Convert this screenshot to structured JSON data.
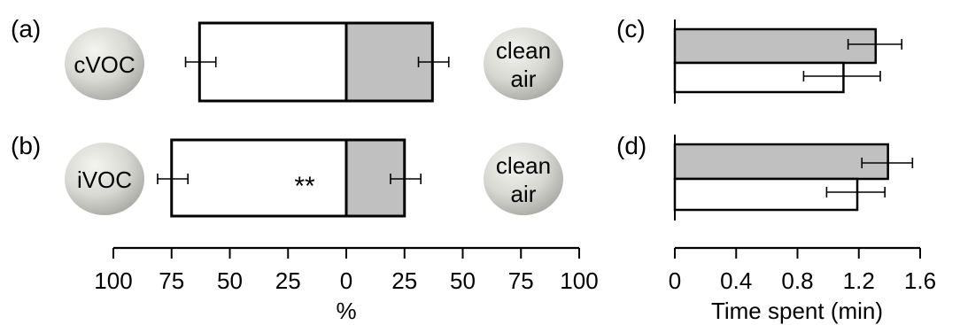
{
  "chart_data": [
    {
      "panel": "(a)",
      "type": "bar",
      "orientation": "horizontal-diverging",
      "left_label": "cVOC",
      "right_label": "clean air",
      "left": {
        "value": 63,
        "err_low": 56,
        "err_high": 69
      },
      "right": {
        "value": 37,
        "err_low": 31,
        "err_high": 44
      },
      "annotation": "",
      "xlim": [
        -100,
        100
      ],
      "xlabel": "%",
      "tick_labels": [
        "100",
        "75",
        "50",
        "25",
        "0",
        "25",
        "50",
        "75",
        "100"
      ]
    },
    {
      "panel": "(b)",
      "type": "bar",
      "orientation": "horizontal-diverging",
      "left_label": "iVOC",
      "right_label": "clean air",
      "left": {
        "value": 75,
        "err_low": 68,
        "err_high": 81
      },
      "right": {
        "value": 25,
        "err_low": 19,
        "err_high": 32
      },
      "annotation": "**",
      "xlim": [
        -100,
        100
      ],
      "xlabel": "%",
      "tick_labels": [
        "100",
        "75",
        "50",
        "25",
        "0",
        "25",
        "50",
        "75",
        "100"
      ]
    },
    {
      "panel": "(c)",
      "type": "bar",
      "orientation": "horizontal",
      "bars": [
        {
          "fill": "#c0c0c0",
          "value": 1.31,
          "err_low": 1.13,
          "err_high": 1.48
        },
        {
          "fill": "#ffffff",
          "value": 1.1,
          "err_low": 0.84,
          "err_high": 1.34
        }
      ],
      "xlim": [
        0,
        1.6
      ],
      "xlabel": "Time spent (min)",
      "tick_labels": [
        "0",
        "0.4",
        "0.8",
        "1.2",
        "1.6"
      ]
    },
    {
      "panel": "(d)",
      "type": "bar",
      "orientation": "horizontal",
      "bars": [
        {
          "fill": "#c0c0c0",
          "value": 1.39,
          "err_low": 1.22,
          "err_high": 1.55
        },
        {
          "fill": "#ffffff",
          "value": 1.19,
          "err_low": 0.99,
          "err_high": 1.37
        }
      ],
      "xlim": [
        0,
        1.6
      ],
      "xlabel": "Time spent (min)",
      "tick_labels": [
        "0",
        "0.4",
        "0.8",
        "1.2",
        "1.6"
      ]
    }
  ],
  "colors": {
    "gray_bar": "#c0c0c0",
    "white_bar": "#ffffff"
  }
}
